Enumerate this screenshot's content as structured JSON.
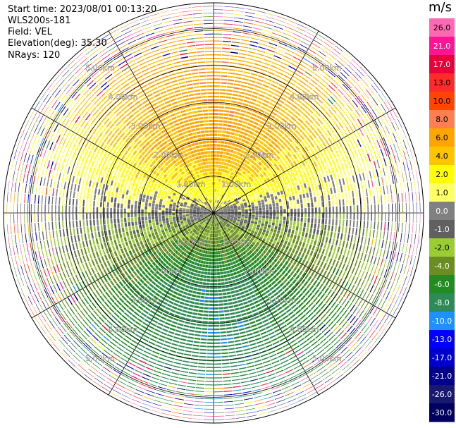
{
  "header": {
    "start_time": "Start time: 2023/08/01 00:13:20",
    "instrument": "WLS200s-181",
    "field": "Field: VEL",
    "elevation": "Elevation(deg): 35.30",
    "nrays": "NRays: 120"
  },
  "colorbar": {
    "unit": "m/s",
    "levels": [
      "26.0",
      "21.0",
      "17.0",
      "13.0",
      "10.0",
      "8.0",
      "6.0",
      "4.0",
      "2.0",
      "1.0",
      "0.0",
      "-1.0",
      "-2.0",
      "-4.0",
      "-6.0",
      "-8.0",
      "-10.0",
      "-13.0",
      "-17.0",
      "-21.0",
      "-26.0",
      "-30.0"
    ],
    "colors": [
      "#ff69b4",
      "#ff1493",
      "#e8003a",
      "#ff2a2a",
      "#ff4500",
      "#ff7f50",
      "#ffa500",
      "#ffc400",
      "#ffff00",
      "#ffff66",
      "#808080",
      "#606060",
      "#9acd32",
      "#6b8e23",
      "#228b22",
      "#2e8b57",
      "#1e90ff",
      "#0000ff",
      "#0000cd",
      "#00008b",
      "#191970",
      "#000060"
    ]
  },
  "chart_data": {
    "type": "heatmap",
    "projection": "polar PPI",
    "field": "VEL",
    "units": "m/s",
    "elevation_deg": 35.3,
    "nrays": 120,
    "range_rings_km": [
      1.0,
      2.0,
      3.0,
      4.0,
      5.0
    ],
    "ring_labels": [
      "1.00km",
      "2.00km",
      "3.00km",
      "4.00km",
      "5.00km"
    ],
    "spokes_deg": [
      0,
      30,
      60,
      90,
      120,
      150,
      180,
      210,
      240,
      270,
      300,
      330
    ],
    "max_range_km": 5.7,
    "velocity_pattern": {
      "north_sector": "positive (approx 2 to 8 m/s)",
      "south_sector": "negative (approx -2 to -10 m/s)",
      "outer_ranges": "noisy, full colour range"
    }
  }
}
